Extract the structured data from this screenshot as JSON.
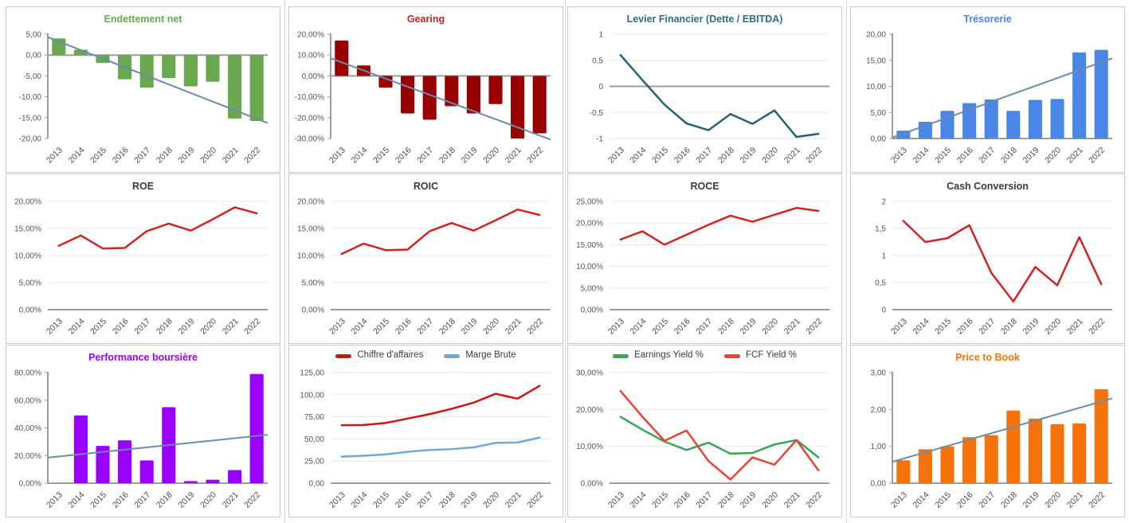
{
  "page": {
    "background": "#ffffff",
    "panel_border": "#c9c9c9",
    "separator_color": "#d9d9d9",
    "axis_color": "#9c9c9c",
    "grid_color": "#e8e8e8",
    "trend_color": "#6a8cab"
  },
  "chart_data": [
    {
      "id": "endettement-net",
      "type": "bar",
      "title": "Endettement net",
      "title_color": "#6aa84f",
      "categories": [
        "2013",
        "2014",
        "2015",
        "2016",
        "2017",
        "2018",
        "2019",
        "2020",
        "2021",
        "2022"
      ],
      "series": [
        {
          "name": "Endettement net",
          "color": "#6aa84f",
          "values": [
            4.0,
            1.3,
            -1.9,
            -5.8,
            -7.8,
            -5.5,
            -7.5,
            -6.4,
            -15.2,
            -15.8
          ]
        }
      ],
      "ylim": [
        -20,
        5
      ],
      "yticks": [
        [
          5,
          "5,00"
        ],
        [
          0,
          "0,00"
        ],
        [
          -5,
          "-5,00"
        ],
        [
          -10,
          "-10,00"
        ],
        [
          -15,
          "-15,00"
        ],
        [
          -20,
          "-20,00"
        ]
      ],
      "grid": false,
      "left_axis": true,
      "zero_line": true,
      "trend": {
        "from": 4.3,
        "to": -16.3,
        "color": "#6a8cab"
      }
    },
    {
      "id": "gearing",
      "type": "bar",
      "title": "Gearing",
      "title_color": "#cc2222",
      "categories": [
        "2013",
        "2014",
        "2015",
        "2016",
        "2017",
        "2018",
        "2019",
        "2020",
        "2021",
        "2022"
      ],
      "series": [
        {
          "name": "Gearing",
          "color": "#990000",
          "values": [
            17,
            5,
            -5.6,
            -18,
            -21,
            -14.5,
            -18,
            -13.5,
            -30,
            -27.5
          ]
        }
      ],
      "ylim": [
        -30,
        20
      ],
      "yticks": [
        [
          20,
          "20,00%"
        ],
        [
          10,
          "10,00%"
        ],
        [
          0,
          "0,00%"
        ],
        [
          -10,
          "-10,00%"
        ],
        [
          -20,
          "-20,00%"
        ],
        [
          -30,
          "-30,00%"
        ]
      ],
      "grid": false,
      "left_axis": true,
      "zero_line": true,
      "trend": {
        "from": 8.5,
        "to": -30.5,
        "color": "#6a8cab"
      }
    },
    {
      "id": "levier-financier",
      "type": "line",
      "title": "Levier Financier (Dette / EBITDA)",
      "title_color": "#2b6e85",
      "categories": [
        "2013",
        "2014",
        "2015",
        "2016",
        "2017",
        "2018",
        "2019",
        "2020",
        "2021",
        "2022"
      ],
      "series": [
        {
          "name": "Levier Financier",
          "color": "#266273",
          "values": [
            0.6,
            0.12,
            -0.35,
            -0.71,
            -0.84,
            -0.53,
            -0.72,
            -0.46,
            -0.97,
            -0.91
          ]
        }
      ],
      "ylim": [
        -1,
        1
      ],
      "yticks": [
        [
          1,
          "1"
        ],
        [
          0.5,
          "0,5"
        ],
        [
          0,
          "0"
        ],
        [
          -0.5,
          "-0,5"
        ],
        [
          -1,
          "-1"
        ]
      ],
      "grid": true,
      "left_axis": false,
      "zero_line": true
    },
    {
      "id": "tresorerie",
      "type": "bar",
      "title": "Trésorerie",
      "title_color": "#4a86e8",
      "categories": [
        "2013",
        "2014",
        "2015",
        "2016",
        "2017",
        "2018",
        "2019",
        "2020",
        "2021",
        "2022"
      ],
      "series": [
        {
          "name": "Trésorerie",
          "color": "#4a86e8",
          "values": [
            1.5,
            3.2,
            5.3,
            6.8,
            7.5,
            5.3,
            7.4,
            7.6,
            16.5,
            17.0
          ]
        }
      ],
      "ylim": [
        0,
        20
      ],
      "yticks": [
        [
          20,
          "20,00"
        ],
        [
          15,
          "15,00"
        ],
        [
          10,
          "10,00"
        ],
        [
          5,
          "5,00"
        ],
        [
          0,
          "0,00"
        ]
      ],
      "grid": false,
      "left_axis": true,
      "zero_line": true,
      "trend": {
        "from": 0.2,
        "to": 15.4,
        "color": "#6a8cab"
      }
    },
    {
      "id": "roe",
      "type": "line",
      "title": "ROE",
      "title_color": "#3b3b3b",
      "categories": [
        "2013",
        "2014",
        "2015",
        "2016",
        "2017",
        "2018",
        "2019",
        "2020",
        "2021",
        "2022"
      ],
      "series": [
        {
          "name": "ROE",
          "color": "#d32222",
          "values": [
            11.8,
            13.7,
            11.3,
            11.4,
            14.5,
            15.9,
            14.6,
            16.7,
            18.9,
            17.8
          ]
        }
      ],
      "ylim": [
        0,
        20
      ],
      "yticks": [
        [
          20,
          "20,00%"
        ],
        [
          15,
          "15,00%"
        ],
        [
          10,
          "10,00%"
        ],
        [
          5,
          "5,00%"
        ],
        [
          0,
          "0,00%"
        ]
      ],
      "grid": true,
      "left_axis": false,
      "zero_line": true
    },
    {
      "id": "roic",
      "type": "line",
      "title": "ROIC",
      "title_color": "#3b3b3b",
      "categories": [
        "2013",
        "2014",
        "2015",
        "2016",
        "2017",
        "2018",
        "2019",
        "2020",
        "2021",
        "2022"
      ],
      "series": [
        {
          "name": "ROIC",
          "color": "#d32222",
          "values": [
            10.3,
            12.2,
            11.0,
            11.1,
            14.5,
            16.0,
            14.6,
            16.5,
            18.5,
            17.5
          ]
        }
      ],
      "ylim": [
        0,
        20
      ],
      "yticks": [
        [
          20,
          "20,00%"
        ],
        [
          15,
          "15,00%"
        ],
        [
          10,
          "10,00%"
        ],
        [
          5,
          "5,00%"
        ],
        [
          0,
          "0,00%"
        ]
      ],
      "grid": true,
      "left_axis": false,
      "zero_line": true
    },
    {
      "id": "roce",
      "type": "line",
      "title": "ROCE",
      "title_color": "#3b3b3b",
      "categories": [
        "2013",
        "2014",
        "2015",
        "2016",
        "2017",
        "2018",
        "2019",
        "2020",
        "2021",
        "2022"
      ],
      "series": [
        {
          "name": "ROCE",
          "color": "#d32222",
          "values": [
            16.2,
            18.1,
            15.0,
            17.3,
            19.6,
            21.7,
            20.3,
            21.9,
            23.5,
            22.8
          ]
        }
      ],
      "ylim": [
        0,
        25
      ],
      "yticks": [
        [
          25,
          "25,00%"
        ],
        [
          20,
          "20,00%"
        ],
        [
          15,
          "15,00%"
        ],
        [
          10,
          "10,00%"
        ],
        [
          5,
          "5,00%"
        ],
        [
          0,
          "0,00%"
        ]
      ],
      "grid": true,
      "left_axis": false,
      "zero_line": true
    },
    {
      "id": "cash-conversion",
      "type": "line",
      "title": "Cash Conversion",
      "title_color": "#3b3b3b",
      "categories": [
        "2013",
        "2014",
        "2015",
        "2016",
        "2017",
        "2018",
        "2019",
        "2020",
        "2021",
        "2022"
      ],
      "series": [
        {
          "name": "Cash Conversion",
          "color": "#d32222",
          "values": [
            1.64,
            1.25,
            1.32,
            1.56,
            0.68,
            0.15,
            0.79,
            0.45,
            1.34,
            0.47
          ]
        }
      ],
      "ylim": [
        0,
        2
      ],
      "yticks": [
        [
          2,
          "2"
        ],
        [
          1.5,
          "1,5"
        ],
        [
          1,
          "1"
        ],
        [
          0.5,
          "0,5"
        ],
        [
          0,
          "0"
        ]
      ],
      "grid": true,
      "left_axis": false,
      "zero_line": true
    },
    {
      "id": "performance-boursiere",
      "type": "bar",
      "title": "Performance boursière",
      "title_color": "#9900ff",
      "categories": [
        "2013",
        "2014",
        "2015",
        "2016",
        "2017",
        "2018",
        "2019",
        "2020",
        "2021",
        "2022"
      ],
      "series": [
        {
          "name": "Performance boursière",
          "color": "#9900ff",
          "values": [
            0,
            49,
            27,
            31,
            16.5,
            55,
            1.5,
            2.5,
            9.5,
            79
          ]
        }
      ],
      "ylim": [
        0,
        80
      ],
      "yticks": [
        [
          80,
          "80,00%"
        ],
        [
          60,
          "60,00%"
        ],
        [
          40,
          "40,00%"
        ],
        [
          20,
          "20,00%"
        ],
        [
          0,
          "0,00%"
        ]
      ],
      "grid": false,
      "left_axis": true,
      "zero_line": true,
      "trend": {
        "from": 18.5,
        "to": 35,
        "color": "#6a8cab"
      }
    },
    {
      "id": "ca-marge-brute",
      "type": "line",
      "categories": [
        "2013",
        "2014",
        "2015",
        "2016",
        "2017",
        "2018",
        "2019",
        "2020",
        "2021",
        "2022"
      ],
      "series": [
        {
          "name": "Chiffre d'affaires",
          "color": "#cf1414",
          "values": [
            65.5,
            65.8,
            68,
            73,
            78,
            84,
            91,
            101,
            95.5,
            110
          ]
        },
        {
          "name": "Marge Brute",
          "color": "#6fa8dc",
          "values": [
            30,
            31,
            32.5,
            35.5,
            37.5,
            38.5,
            40.5,
            45.5,
            46,
            51.5
          ]
        }
      ],
      "ylim": [
        0,
        125
      ],
      "yticks": [
        [
          125,
          "125,00"
        ],
        [
          100,
          "100,00"
        ],
        [
          75,
          "75,00"
        ],
        [
          50,
          "50,00"
        ],
        [
          25,
          "25,00"
        ],
        [
          0,
          "0,00"
        ]
      ],
      "grid": true,
      "left_axis": false,
      "zero_line": true,
      "legend": true
    },
    {
      "id": "yields",
      "type": "line",
      "categories": [
        "2013",
        "2014",
        "2015",
        "2016",
        "2017",
        "2018",
        "2019",
        "2020",
        "2021",
        "2022"
      ],
      "series": [
        {
          "name": "Earnings Yield %",
          "color": "#34a853",
          "values": [
            18,
            14.5,
            11.3,
            9,
            11,
            8,
            8.2,
            10.5,
            11.7,
            7
          ]
        },
        {
          "name": "FCF Yield %",
          "color": "#ea4335",
          "values": [
            25,
            18,
            11.5,
            14.3,
            6,
            1,
            7,
            5,
            11.7,
            3.5
          ]
        }
      ],
      "ylim": [
        0,
        30
      ],
      "yticks": [
        [
          30,
          "30,00%"
        ],
        [
          20,
          "20,00%"
        ],
        [
          10,
          "10,00%"
        ],
        [
          0,
          "0,00%"
        ]
      ],
      "grid": true,
      "left_axis": false,
      "zero_line": true,
      "legend": true
    },
    {
      "id": "price-to-book",
      "type": "bar",
      "title": "Price to Book",
      "title_color": "#f6730c",
      "categories": [
        "2013",
        "2014",
        "2015",
        "2016",
        "2017",
        "2018",
        "2019",
        "2020",
        "2021",
        "2022"
      ],
      "series": [
        {
          "name": "Price to Book",
          "color": "#f6730c",
          "values": [
            0.62,
            0.92,
            1.0,
            1.25,
            1.3,
            1.97,
            1.75,
            1.6,
            1.62,
            2.55
          ]
        }
      ],
      "ylim": [
        0,
        3
      ],
      "yticks": [
        [
          3,
          "3,00"
        ],
        [
          2,
          "2,00"
        ],
        [
          1,
          "1,00"
        ],
        [
          0,
          "0,00"
        ]
      ],
      "grid": false,
      "left_axis": true,
      "zero_line": true,
      "trend": {
        "from": 0.58,
        "to": 2.3,
        "color": "#6a8cab"
      }
    }
  ]
}
